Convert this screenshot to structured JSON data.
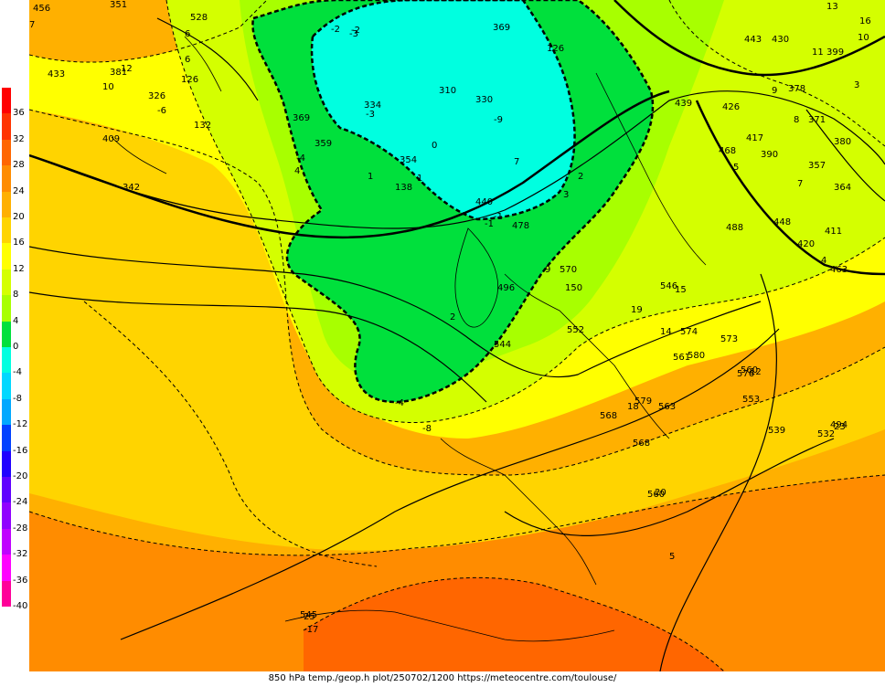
{
  "footer_text": "850 hPa temp./geop.h plot/250702/1200 https://meteocentre.com/toulouse/",
  "legend": {
    "labels": [
      "36",
      "32",
      "28",
      "24",
      "20",
      "16",
      "12",
      "8",
      "4",
      "0",
      "-4",
      "-8",
      "-12",
      "-16",
      "-20",
      "-24",
      "-28",
      "-32",
      "-36",
      "-40"
    ],
    "colors": [
      "#ff0000",
      "#ff3300",
      "#ff6600",
      "#ff8c00",
      "#ffb000",
      "#ffd400",
      "#ffff00",
      "#d4ff00",
      "#a8ff00",
      "#00e03c",
      "#00ffe0",
      "#00d8ff",
      "#00a8ff",
      "#0040ff",
      "#2000ff",
      "#6000ff",
      "#9000ff",
      "#c000ff",
      "#ff00ff",
      "#ff0099"
    ]
  },
  "geopotential_labels": [
    "456",
    "351",
    "528",
    "126",
    "381",
    "433",
    "326",
    "132",
    "409",
    "342",
    "369",
    "359",
    "334",
    "310",
    "330",
    "369",
    "126",
    "354",
    "138",
    "440",
    "478",
    "443",
    "430",
    "399",
    "426",
    "378",
    "371",
    "380",
    "439",
    "417",
    "390",
    "357",
    "364",
    "468",
    "420",
    "411",
    "488",
    "448",
    "463",
    "570",
    "496",
    "544",
    "580",
    "552",
    "561",
    "150",
    "546",
    "563",
    "574",
    "568",
    "576",
    "560",
    "553",
    "539",
    "494",
    "532",
    "568",
    "560",
    "545",
    "579",
    "573"
  ],
  "temperature_labels": [
    "7",
    "-3",
    "-2",
    "4",
    "7",
    "6",
    "6",
    "10",
    "12",
    "-6",
    "-1",
    "0",
    "1",
    "-3",
    "1",
    "-4",
    "3",
    "2",
    "-1",
    "13",
    "16",
    "10",
    "11",
    "9",
    "8",
    "7",
    "3",
    "5",
    "4",
    "12",
    "9",
    "2",
    "15",
    "14",
    "18",
    "19",
    "20",
    "5",
    "25",
    "-17",
    "23",
    "-8",
    "-4",
    "-2",
    "-9"
  ]
}
